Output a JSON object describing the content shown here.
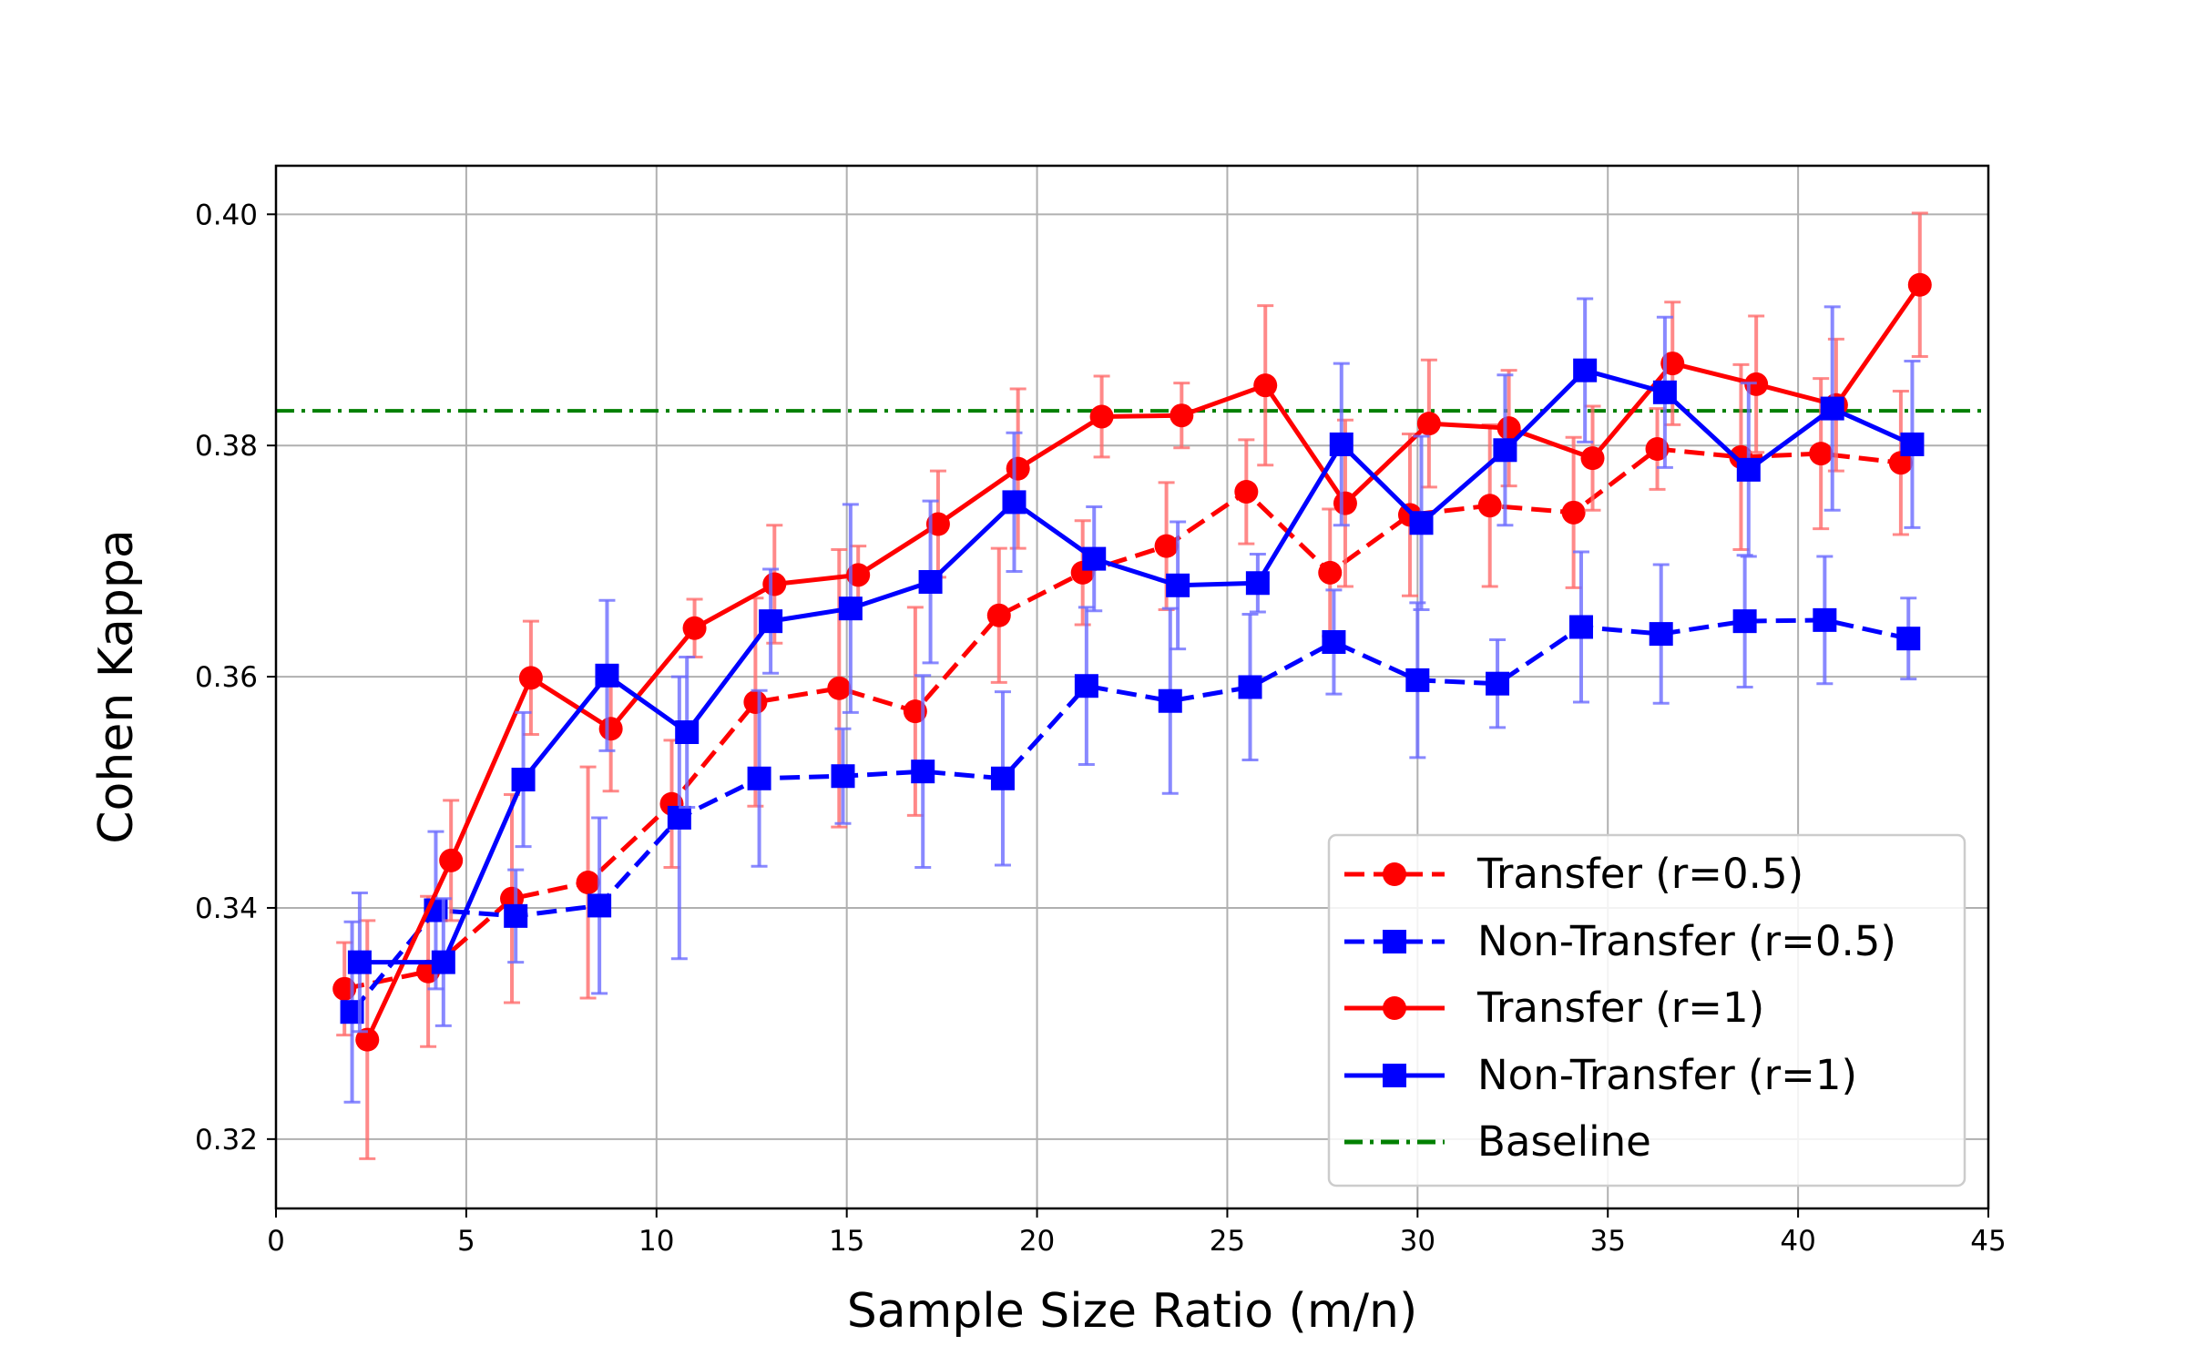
{
  "chart_data": {
    "type": "line",
    "xlabel": "Sample Size Ratio (m/n)",
    "ylabel": "Cohen Kappa",
    "xlim": [
      0,
      45
    ],
    "ylim": [
      0.314,
      0.4042
    ],
    "xticks": [
      0,
      5,
      10,
      15,
      20,
      25,
      30,
      35,
      40,
      45
    ],
    "yticks": [
      0.32,
      0.34,
      0.36,
      0.38,
      0.4
    ],
    "xtick_labels": [
      "0",
      "5",
      "10",
      "15",
      "20",
      "25",
      "30",
      "35",
      "40",
      "45"
    ],
    "ytick_labels": [
      "0.32",
      "0.34",
      "0.36",
      "0.38",
      "0.40"
    ],
    "grid": true,
    "legend_position": "lower-right",
    "series": [
      {
        "name": "Transfer (r=0.5)",
        "color": "#ff0000",
        "linestyle": "dashed",
        "marker": "circle",
        "x": [
          1.8,
          4.0,
          6.2,
          8.2,
          10.4,
          12.6,
          14.8,
          16.8,
          19.0,
          21.2,
          23.4,
          25.5,
          27.7,
          29.8,
          31.9,
          34.1,
          36.3,
          38.5,
          40.6,
          42.7
        ],
        "y": [
          0.333,
          0.3345,
          0.3408,
          0.3422,
          0.349,
          0.3578,
          0.359,
          0.357,
          0.3653,
          0.369,
          0.3713,
          0.376,
          0.369,
          0.374,
          0.3748,
          0.3742,
          0.3797,
          0.379,
          0.3793,
          0.3785
        ],
        "err": [
          0.004,
          0.0065,
          0.009,
          0.01,
          0.0055,
          0.009,
          0.012,
          0.009,
          0.0058,
          0.0045,
          0.0055,
          0.0045,
          0.0055,
          0.007,
          0.007,
          0.0065,
          0.0035,
          0.008,
          0.0065,
          0.0062
        ]
      },
      {
        "name": "Non-Transfer (r=0.5)",
        "color": "#0000ff",
        "linestyle": "dashed",
        "marker": "square",
        "x": [
          2.0,
          4.2,
          6.3,
          8.5,
          10.6,
          12.7,
          14.9,
          17.0,
          19.1,
          21.3,
          23.5,
          25.6,
          27.8,
          30.0,
          32.1,
          34.3,
          36.4,
          38.6,
          40.7,
          42.9
        ],
        "y": [
          0.331,
          0.3398,
          0.3393,
          0.3402,
          0.3478,
          0.3512,
          0.3514,
          0.3518,
          0.3512,
          0.3592,
          0.3579,
          0.3591,
          0.363,
          0.3597,
          0.3594,
          0.3643,
          0.3637,
          0.3648,
          0.3649,
          0.3633
        ],
        "err": [
          0.0078,
          0.0068,
          0.004,
          0.0076,
          0.0122,
          0.0076,
          0.0041,
          0.0083,
          0.0075,
          0.0068,
          0.008,
          0.0063,
          0.0045,
          0.0067,
          0.0038,
          0.0065,
          0.006,
          0.0057,
          0.0055,
          0.0035
        ]
      },
      {
        "name": "Transfer (r=1)",
        "color": "#ff0000",
        "linestyle": "solid",
        "marker": "circle",
        "x": [
          2.4,
          4.6,
          6.7,
          8.8,
          11.0,
          13.1,
          15.3,
          17.4,
          19.5,
          21.7,
          23.8,
          26.0,
          28.1,
          30.3,
          32.4,
          34.6,
          36.7,
          38.9,
          41.0,
          43.2
        ],
        "y": [
          0.3286,
          0.3441,
          0.3599,
          0.3555,
          0.3642,
          0.368,
          0.3688,
          0.3732,
          0.378,
          0.3825,
          0.3826,
          0.3852,
          0.375,
          0.3819,
          0.3815,
          0.3789,
          0.3871,
          0.3853,
          0.3835,
          0.3939
        ],
        "err": [
          0.0103,
          0.0052,
          0.0049,
          0.0054,
          0.0025,
          0.0051,
          0.0025,
          0.0046,
          0.0069,
          0.0035,
          0.0028,
          0.0069,
          0.0072,
          0.0055,
          0.005,
          0.0045,
          0.0053,
          0.0059,
          0.0057,
          0.0062
        ]
      },
      {
        "name": "Non-Transfer (r=1)",
        "color": "#0000ff",
        "linestyle": "solid",
        "marker": "square",
        "x": [
          2.2,
          4.4,
          6.5,
          8.7,
          10.8,
          13.0,
          15.1,
          17.2,
          19.4,
          21.5,
          23.7,
          25.8,
          28.0,
          30.1,
          32.3,
          34.4,
          36.5,
          38.7,
          40.9,
          43.0
        ],
        "y": [
          0.3353,
          0.3353,
          0.3511,
          0.3601,
          0.3552,
          0.3648,
          0.3659,
          0.3682,
          0.3751,
          0.3702,
          0.3679,
          0.3681,
          0.3801,
          0.3733,
          0.3796,
          0.3865,
          0.3846,
          0.3779,
          0.3832,
          0.3801
        ],
        "err": [
          0.006,
          0.0055,
          0.0058,
          0.0065,
          0.0065,
          0.0045,
          0.009,
          0.007,
          0.006,
          0.0045,
          0.0055,
          0.0025,
          0.007,
          0.0075,
          0.0065,
          0.0062,
          0.0065,
          0.0075,
          0.0088,
          0.0072
        ]
      },
      {
        "name": "Baseline",
        "color": "#008000",
        "linestyle": "dashdot",
        "marker": "none",
        "y": 0.383
      }
    ]
  }
}
